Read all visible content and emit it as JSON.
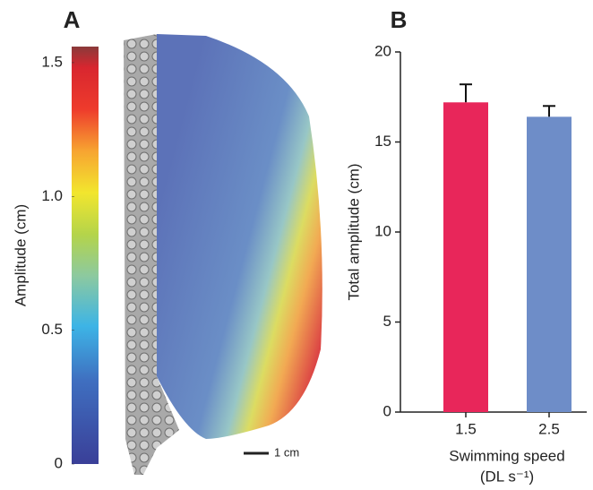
{
  "chart_data": [
    {
      "type": "colorbar",
      "panel": "A",
      "y_label": "Amplitude (cm)",
      "ylim": [
        0,
        1.56
      ],
      "yticks": [
        0,
        0.5,
        {
          "value": 1,
          "label": "1.0"
        },
        1.5
      ],
      "scale_bar_label": "1 cm"
    },
    {
      "type": "bar",
      "panel": "B",
      "y_label": "Total amplitude (cm)",
      "x_label": "Swimming speed",
      "x_label_unit": "(DL s⁻¹)",
      "categories": [
        "1.5",
        "2.5"
      ],
      "values": [
        17.2,
        16.4
      ],
      "errors": [
        1.0,
        0.6
      ],
      "colors": [
        "#e8265a",
        "#6e8dc8"
      ],
      "ylim": [
        0,
        20
      ],
      "yticks": [
        0,
        5,
        10,
        15,
        20
      ]
    }
  ]
}
